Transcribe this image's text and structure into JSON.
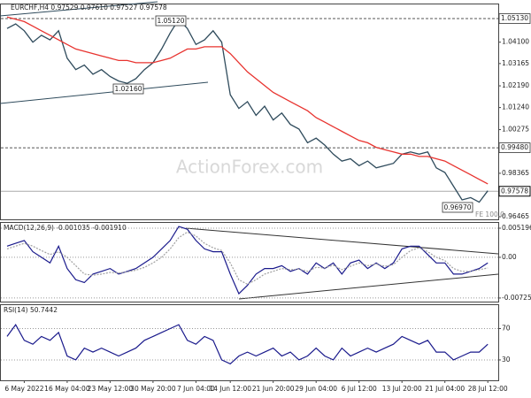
{
  "chart_data": [
    {
      "type": "line",
      "title": "EURCHF,H4 0.97529 0.97610 0.97527 0.97578",
      "watermark": "ActionForex.com",
      "annotations": [
        "1.05120",
        "1.02160",
        "0.96970",
        "FE 100.0"
      ],
      "ylim": [
        0.9635,
        1.0579
      ],
      "yticks": [
        {
          "value": 1.041,
          "label": "1.04100"
        },
        {
          "value": 1.03165,
          "label": "1.03165"
        },
        {
          "value": 1.0219,
          "label": "1.02190"
        },
        {
          "value": 1.0124,
          "label": "1.01240"
        },
        {
          "value": 1.00275,
          "label": "1.00275"
        },
        {
          "value": 0.98365,
          "label": "0.98365"
        },
        {
          "value": 0.96465,
          "label": "0.96465"
        }
      ],
      "levels": [
        {
          "value": 1.0513,
          "label": "1.05130"
        },
        {
          "value": 0.9948,
          "label": "0.99480"
        }
      ],
      "last_price": {
        "value": 0.97578,
        "label": "0.97578"
      },
      "grid": false,
      "series": [
        {
          "color": "#2f4b5c",
          "values": [
            1.047,
            1.049,
            1.046,
            1.041,
            1.044,
            1.042,
            1.046,
            1.034,
            1.029,
            1.031,
            1.027,
            1.029,
            1.026,
            1.024,
            1.023,
            1.025,
            1.029,
            1.032,
            1.038,
            1.045,
            1.051,
            1.047,
            1.04,
            1.042,
            1.046,
            1.041,
            1.018,
            1.012,
            1.015,
            1.009,
            1.013,
            1.007,
            1.01,
            1.005,
            1.003,
            0.997,
            0.999,
            0.996,
            0.992,
            0.989,
            0.99,
            0.987,
            0.989,
            0.986,
            0.987,
            0.988,
            0.992,
            0.993,
            0.992,
            0.993,
            0.986,
            0.984,
            0.978,
            0.972,
            0.973,
            0.971,
            0.976
          ]
        },
        {
          "color": "#e8332f",
          "values": [
            1.052,
            1.051,
            1.05,
            1.048,
            1.046,
            1.044,
            1.042,
            1.04,
            1.038,
            1.037,
            1.036,
            1.035,
            1.034,
            1.033,
            1.033,
            1.032,
            1.032,
            1.032,
            1.033,
            1.034,
            1.036,
            1.038,
            1.038,
            1.039,
            1.039,
            1.039,
            1.036,
            1.032,
            1.028,
            1.025,
            1.022,
            1.019,
            1.017,
            1.015,
            1.013,
            1.011,
            1.008,
            1.006,
            1.004,
            1.002,
            1.0,
            0.998,
            0.997,
            0.995,
            0.994,
            0.993,
            0.992,
            0.992,
            0.991,
            0.991,
            0.99,
            0.989,
            0.987,
            0.985,
            0.983,
            0.981,
            0.979
          ]
        }
      ]
    },
    {
      "type": "line",
      "title": "MACD(12,26,9) -0.001035 -0.001910",
      "ylim": [
        -0.0079,
        0.0063
      ],
      "yticks": [
        0.005196,
        {
          "value": 0,
          "label": "0.00"
        },
        -0.007259
      ],
      "grid": true,
      "series": [
        {
          "color": "#1a1a8c",
          "values": [
            0.002,
            0.0025,
            0.003,
            0.001,
            0.0,
            -0.001,
            0.002,
            -0.002,
            -0.004,
            -0.0045,
            -0.003,
            -0.0025,
            -0.002,
            -0.003,
            -0.0025,
            -0.002,
            -0.001,
            0.0,
            0.0015,
            0.003,
            0.0055,
            0.005,
            0.003,
            0.0015,
            0.001,
            0.001,
            -0.003,
            -0.0065,
            -0.005,
            -0.003,
            -0.002,
            -0.002,
            -0.0015,
            -0.0025,
            -0.002,
            -0.003,
            -0.001,
            -0.002,
            -0.001,
            -0.003,
            -0.001,
            -0.0005,
            -0.002,
            -0.001,
            -0.002,
            -0.001,
            0.0015,
            0.002,
            0.002,
            0.0005,
            -0.001,
            -0.001,
            -0.003,
            -0.003,
            -0.0025,
            -0.002,
            -0.001
          ]
        },
        {
          "color": "#a0a0a0",
          "values": [
            0.0015,
            0.002,
            0.0025,
            0.002,
            0.0012,
            0.0005,
            0.001,
            0.0,
            -0.0015,
            -0.003,
            -0.0032,
            -0.003,
            -0.0027,
            -0.0028,
            -0.0026,
            -0.0023,
            -0.0018,
            -0.001,
            0.0,
            0.0015,
            0.0035,
            0.0045,
            0.0038,
            0.0025,
            0.0017,
            0.0012,
            -0.001,
            -0.004,
            -0.0048,
            -0.004,
            -0.003,
            -0.0025,
            -0.002,
            -0.0022,
            -0.0021,
            -0.0025,
            -0.0018,
            -0.0019,
            -0.0014,
            -0.0022,
            -0.0016,
            -0.001,
            -0.0015,
            -0.0012,
            -0.0016,
            -0.0013,
            0.0,
            0.0012,
            0.0017,
            0.001,
            0.0,
            -0.0006,
            -0.002,
            -0.0025,
            -0.0025,
            -0.0022,
            -0.0019
          ]
        }
      ]
    },
    {
      "type": "line",
      "title": "RSI(14) 50.7442",
      "ylim": [
        4,
        101
      ],
      "yticks": [
        70,
        30
      ],
      "grid": true,
      "categories": [
        null,
        null,
        "6 May 2022",
        null,
        null,
        null,
        null,
        "16 May 04:00",
        null,
        null,
        null,
        null,
        "23 May 12:00",
        null,
        null,
        null,
        null,
        "30 May 20:00",
        null,
        null,
        null,
        null,
        "7 Jun 04:00",
        null,
        null,
        null,
        "14 Jun 12:00",
        null,
        null,
        null,
        null,
        "21 Jun 20:00",
        null,
        null,
        null,
        null,
        "29 Jun 04:00",
        null,
        null,
        null,
        null,
        "6 Jul 12:00",
        null,
        null,
        null,
        null,
        "13 Jul 20:00",
        null,
        null,
        null,
        null,
        "21 Jul 04:00",
        null,
        null,
        null,
        null,
        "28 Jul 12:00"
      ],
      "series": [
        {
          "color": "#1a1a8c",
          "values": [
            60,
            75,
            55,
            50,
            60,
            55,
            65,
            35,
            30,
            45,
            40,
            45,
            40,
            35,
            40,
            45,
            55,
            60,
            65,
            70,
            75,
            55,
            50,
            60,
            55,
            30,
            25,
            35,
            40,
            35,
            40,
            45,
            35,
            40,
            30,
            35,
            45,
            35,
            30,
            45,
            35,
            40,
            45,
            40,
            45,
            50,
            60,
            55,
            50,
            55,
            40,
            40,
            30,
            35,
            40,
            40,
            50
          ]
        }
      ]
    }
  ]
}
